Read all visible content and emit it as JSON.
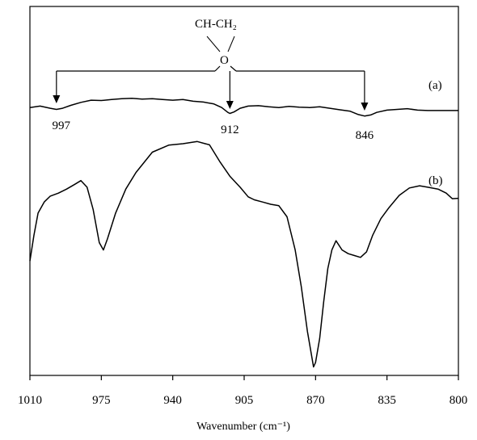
{
  "chart_data": {
    "type": "line",
    "xlabel": "Wavenumber (cm⁻¹)",
    "ylabel": "",
    "xlim": [
      1010,
      800
    ],
    "x_reversed": true,
    "ylim": [
      0,
      100
    ],
    "grid": false,
    "x_ticks": [
      {
        "value": 1010,
        "label": "1010"
      },
      {
        "value": 975,
        "label": "975"
      },
      {
        "value": 940,
        "label": "940"
      },
      {
        "value": 905,
        "label": "905"
      },
      {
        "value": 870,
        "label": "870"
      },
      {
        "value": 835,
        "label": "835"
      },
      {
        "value": 800,
        "label": "800"
      }
    ],
    "series": [
      {
        "name": "(a)",
        "color": "#000000",
        "points": [
          [
            1010,
            72.6
          ],
          [
            1005,
            73.0
          ],
          [
            1000,
            72.4
          ],
          [
            997,
            72.1
          ],
          [
            994,
            72.4
          ],
          [
            990,
            73.2
          ],
          [
            985,
            74.0
          ],
          [
            980,
            74.6
          ],
          [
            975,
            74.5
          ],
          [
            970,
            74.8
          ],
          [
            965,
            75.0
          ],
          [
            960,
            75.1
          ],
          [
            955,
            74.9
          ],
          [
            950,
            75.0
          ],
          [
            945,
            74.8
          ],
          [
            940,
            74.6
          ],
          [
            935,
            74.8
          ],
          [
            930,
            74.3
          ],
          [
            925,
            74.1
          ],
          [
            920,
            73.6
          ],
          [
            916,
            72.6
          ],
          [
            913,
            71.3
          ],
          [
            912,
            71.0
          ],
          [
            910,
            71.4
          ],
          [
            907,
            72.4
          ],
          [
            903,
            73.0
          ],
          [
            898,
            73.1
          ],
          [
            893,
            72.8
          ],
          [
            888,
            72.6
          ],
          [
            883,
            72.9
          ],
          [
            878,
            72.7
          ],
          [
            873,
            72.6
          ],
          [
            868,
            72.8
          ],
          [
            863,
            72.4
          ],
          [
            858,
            72.0
          ],
          [
            853,
            71.6
          ],
          [
            849,
            70.7
          ],
          [
            846,
            70.3
          ],
          [
            843,
            70.6
          ],
          [
            840,
            71.3
          ],
          [
            835,
            71.9
          ],
          [
            830,
            72.1
          ],
          [
            825,
            72.3
          ],
          [
            820,
            71.9
          ],
          [
            815,
            71.8
          ],
          [
            810,
            71.8
          ],
          [
            805,
            71.8
          ],
          [
            800,
            71.8
          ]
        ]
      },
      {
        "name": "(b)",
        "color": "#000000",
        "points": [
          [
            1010,
            31.0
          ],
          [
            1008,
            38.0
          ],
          [
            1006,
            44.0
          ],
          [
            1003,
            47.0
          ],
          [
            1000,
            48.6
          ],
          [
            996,
            49.4
          ],
          [
            992,
            50.5
          ],
          [
            988,
            51.8
          ],
          [
            985,
            52.8
          ],
          [
            982,
            51.0
          ],
          [
            979,
            45.0
          ],
          [
            976,
            36.0
          ],
          [
            974,
            34.0
          ],
          [
            972,
            37.0
          ],
          [
            968,
            44.0
          ],
          [
            963,
            50.5
          ],
          [
            958,
            55.0
          ],
          [
            950,
            60.5
          ],
          [
            942,
            62.4
          ],
          [
            935,
            62.8
          ],
          [
            928,
            63.4
          ],
          [
            922,
            62.5
          ],
          [
            917,
            58.0
          ],
          [
            912,
            54.0
          ],
          [
            907,
            51.0
          ],
          [
            903,
            48.4
          ],
          [
            900,
            47.6
          ],
          [
            896,
            47.0
          ],
          [
            892,
            46.4
          ],
          [
            888,
            46.0
          ],
          [
            884,
            43.0
          ],
          [
            880,
            34.0
          ],
          [
            877,
            24.0
          ],
          [
            874,
            12.0
          ],
          [
            872,
            5.5
          ],
          [
            871,
            2.3
          ],
          [
            870,
            3.5
          ],
          [
            868,
            10.0
          ],
          [
            866,
            20.0
          ],
          [
            864,
            29.0
          ],
          [
            862,
            34.0
          ],
          [
            860,
            36.5
          ],
          [
            857,
            34.0
          ],
          [
            854,
            33.0
          ],
          [
            851,
            32.5
          ],
          [
            848,
            32.0
          ],
          [
            845,
            33.5
          ],
          [
            842,
            38.0
          ],
          [
            838,
            42.5
          ],
          [
            834,
            45.5
          ],
          [
            829,
            48.8
          ],
          [
            824,
            50.8
          ],
          [
            819,
            51.4
          ],
          [
            815,
            51.0
          ],
          [
            810,
            50.5
          ],
          [
            806,
            49.4
          ],
          [
            803,
            47.9
          ],
          [
            800,
            48.0
          ]
        ]
      }
    ],
    "annotations": {
      "structure_top": "CH-CH₂",
      "structure_bottom": "O",
      "labels": [
        {
          "text": "997",
          "x": 997
        },
        {
          "text": "912",
          "x": 912
        },
        {
          "text": "846",
          "x": 846
        }
      ],
      "series_labels": [
        "(a)",
        "(b)"
      ]
    }
  }
}
